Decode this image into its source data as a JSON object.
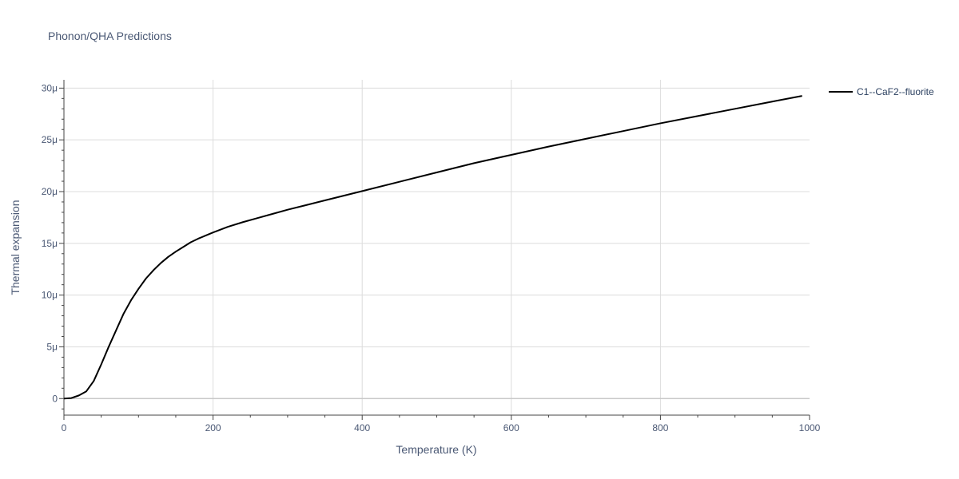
{
  "chart_data": {
    "type": "line",
    "title": "Phonon/QHA Predictions",
    "xlabel": "Temperature (K)",
    "ylabel": "Thermal expansion",
    "xlim": [
      0,
      1000
    ],
    "ylim": [
      -1.6e-06,
      3.08e-05
    ],
    "x_ticks": [
      0,
      200,
      400,
      600,
      800,
      1000
    ],
    "x_tick_labels": [
      "0",
      "200",
      "400",
      "600",
      "800",
      "1000"
    ],
    "y_ticks": [
      0,
      5e-06,
      1e-05,
      1.5e-05,
      2e-05,
      2.5e-05,
      3e-05
    ],
    "y_tick_labels": [
      "0",
      "5μ",
      "10μ",
      "15μ",
      "20μ",
      "25μ",
      "30μ"
    ],
    "grid": true,
    "legend_position": "top-right",
    "series": [
      {
        "name": "C1--CaF2--fluorite",
        "color": "#000000",
        "x": [
          0,
          10,
          20,
          30,
          40,
          50,
          60,
          70,
          80,
          90,
          100,
          110,
          120,
          130,
          140,
          150,
          160,
          170,
          180,
          190,
          200,
          220,
          240,
          260,
          280,
          300,
          350,
          400,
          450,
          500,
          550,
          600,
          650,
          700,
          750,
          800,
          850,
          900,
          950,
          990
        ],
        "y": [
          0,
          5e-08,
          3e-07,
          7e-07,
          1.7e-06,
          3.3e-06,
          5e-06,
          6.6e-06,
          8.2e-06,
          9.5e-06,
          1.06e-05,
          1.16e-05,
          1.24e-05,
          1.31e-05,
          1.37e-05,
          1.42e-05,
          1.465e-05,
          1.51e-05,
          1.545e-05,
          1.575e-05,
          1.605e-05,
          1.66e-05,
          1.705e-05,
          1.745e-05,
          1.785e-05,
          1.825e-05,
          1.915e-05,
          2.005e-05,
          2.095e-05,
          2.185e-05,
          2.275e-05,
          2.355e-05,
          2.435e-05,
          2.51e-05,
          2.585e-05,
          2.66e-05,
          2.73e-05,
          2.8e-05,
          2.87e-05,
          2.925e-05
        ]
      }
    ]
  }
}
